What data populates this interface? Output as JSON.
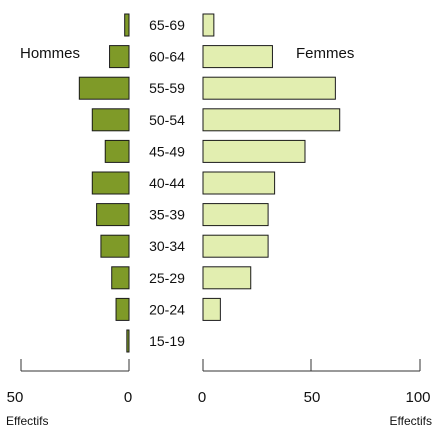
{
  "chart_data": {
    "type": "bar",
    "categories": [
      "65-69",
      "60-64",
      "55-59",
      "50-54",
      "45-49",
      "40-44",
      "35-39",
      "30-34",
      "25-29",
      "20-24",
      "15-19"
    ],
    "series": [
      {
        "name": "Hommes",
        "values": [
          2,
          9,
          23,
          17,
          11,
          17,
          15,
          13,
          8,
          6,
          1
        ],
        "color": "#7f9a28"
      },
      {
        "name": "Femmes",
        "values": [
          5,
          32,
          61,
          63,
          47,
          33,
          30,
          30,
          22,
          8,
          0
        ],
        "color": "#e2eeb0"
      }
    ],
    "left_axis": {
      "ticks": [
        50,
        0
      ],
      "label": "Effectifs",
      "range": [
        50,
        0
      ]
    },
    "right_axis": {
      "ticks": [
        0,
        50,
        100
      ],
      "label": "Effectifs",
      "range": [
        0,
        100
      ]
    }
  }
}
